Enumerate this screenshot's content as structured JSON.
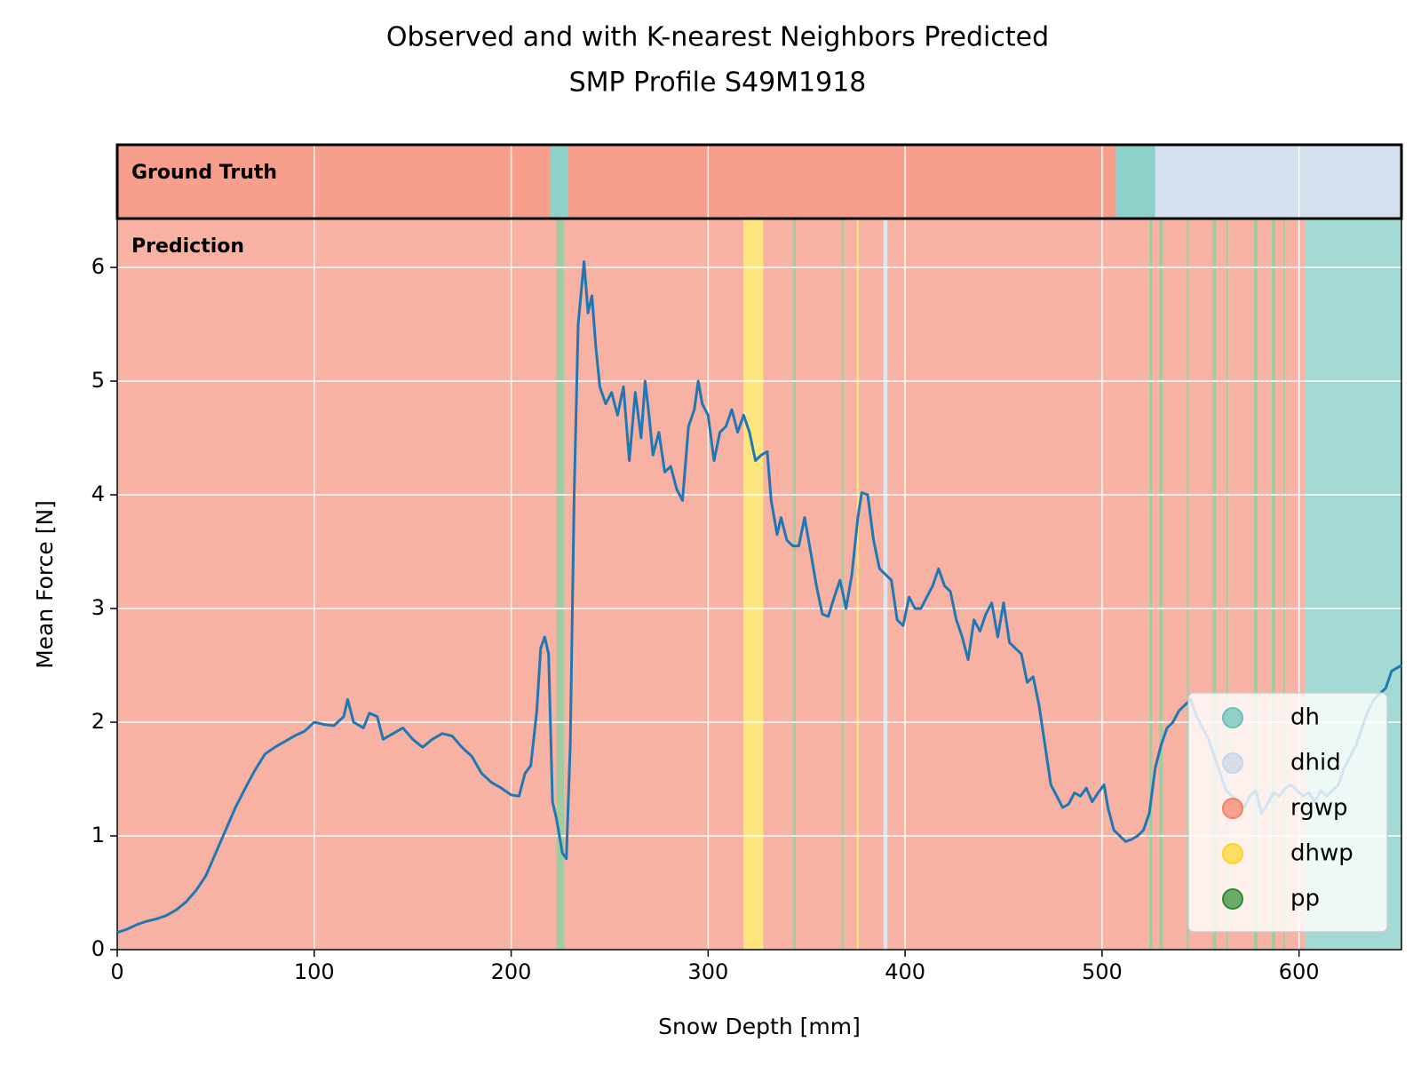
{
  "chart_data": {
    "type": "line",
    "title": [
      "Observed and with K-nearest Neighbors Predicted",
      "SMP Profile S49M1918"
    ],
    "xlabel": "Snow Depth [mm]",
    "ylabel": "Mean Force [N]",
    "panel_labels": {
      "ground_truth": "Ground Truth",
      "prediction": "Prediction"
    },
    "xlim": [
      0,
      652
    ],
    "ylim": [
      0,
      6.43
    ],
    "xticks": [
      0,
      100,
      200,
      300,
      400,
      500,
      600
    ],
    "yticks": [
      0,
      1,
      2,
      3,
      4,
      5,
      6
    ],
    "grid": true,
    "legend_loc": "lower right",
    "classes": [
      {
        "name": "dh",
        "color": "#66c2b8"
      },
      {
        "name": "dhid",
        "color": "#c6d5e8"
      },
      {
        "name": "rgwp",
        "color": "#f47f66"
      },
      {
        "name": "dhwp",
        "color": "#ffd32a"
      },
      {
        "name": "pp",
        "color": "#2e8b2e"
      }
    ],
    "ground_truth": [
      {
        "start": 0,
        "end": 220,
        "grain": "rgwp"
      },
      {
        "start": 220,
        "end": 229,
        "grain": "dh"
      },
      {
        "start": 229,
        "end": 507,
        "grain": "rgwp"
      },
      {
        "start": 507,
        "end": 527,
        "grain": "dh"
      },
      {
        "start": 527,
        "end": 652,
        "grain": "dhid"
      }
    ],
    "prediction": [
      {
        "start": 0,
        "end": 223,
        "grain": "rgwp"
      },
      {
        "start": 223,
        "end": 227,
        "grain": "pp"
      },
      {
        "start": 227,
        "end": 318,
        "grain": "rgwp"
      },
      {
        "start": 318,
        "end": 328,
        "grain": "dhwp"
      },
      {
        "start": 328,
        "end": 343,
        "grain": "rgwp"
      },
      {
        "start": 343,
        "end": 344.5,
        "grain": "pp"
      },
      {
        "start": 344.5,
        "end": 368,
        "grain": "rgwp"
      },
      {
        "start": 368,
        "end": 369,
        "grain": "pp"
      },
      {
        "start": 369,
        "end": 375.5,
        "grain": "rgwp"
      },
      {
        "start": 375.5,
        "end": 376.5,
        "grain": "dhwp"
      },
      {
        "start": 376.5,
        "end": 389,
        "grain": "rgwp"
      },
      {
        "start": 389,
        "end": 391,
        "grain": "dhid"
      },
      {
        "start": 391,
        "end": 524,
        "grain": "rgwp"
      },
      {
        "start": 524,
        "end": 525.5,
        "grain": "pp"
      },
      {
        "start": 525.5,
        "end": 529,
        "grain": "rgwp"
      },
      {
        "start": 529,
        "end": 531,
        "grain": "pp"
      },
      {
        "start": 531,
        "end": 543,
        "grain": "rgwp"
      },
      {
        "start": 543,
        "end": 544,
        "grain": "pp"
      },
      {
        "start": 544,
        "end": 556,
        "grain": "rgwp"
      },
      {
        "start": 556,
        "end": 558,
        "grain": "pp"
      },
      {
        "start": 558,
        "end": 563,
        "grain": "rgwp"
      },
      {
        "start": 563,
        "end": 564,
        "grain": "pp"
      },
      {
        "start": 564,
        "end": 577,
        "grain": "rgwp"
      },
      {
        "start": 577,
        "end": 579,
        "grain": "pp"
      },
      {
        "start": 579,
        "end": 586,
        "grain": "rgwp"
      },
      {
        "start": 586,
        "end": 588,
        "grain": "pp"
      },
      {
        "start": 588,
        "end": 592,
        "grain": "rgwp"
      },
      {
        "start": 592,
        "end": 593,
        "grain": "pp"
      },
      {
        "start": 593,
        "end": 603,
        "grain": "rgwp"
      },
      {
        "start": 603,
        "end": 652,
        "grain": "dh"
      }
    ],
    "x": [
      0,
      5,
      10,
      15,
      20,
      25,
      30,
      35,
      40,
      45,
      50,
      55,
      60,
      65,
      70,
      75,
      80,
      85,
      90,
      95,
      100,
      105,
      110,
      115,
      117,
      120,
      125,
      128,
      132,
      135,
      140,
      145,
      150,
      155,
      160,
      165,
      170,
      175,
      180,
      185,
      190,
      195,
      200,
      204,
      207,
      210,
      213,
      215,
      217,
      219,
      221,
      223,
      226,
      228,
      230,
      232,
      234,
      237,
      239,
      241,
      243,
      245,
      248,
      251,
      254,
      257,
      260,
      263,
      266,
      268,
      270,
      272,
      275,
      278,
      281,
      284,
      287,
      290,
      293,
      295,
      297,
      300,
      303,
      306,
      309,
      312,
      315,
      318,
      321,
      324,
      327,
      330,
      332,
      335,
      337,
      340,
      343,
      346,
      349,
      352,
      355,
      358,
      361,
      364,
      367,
      370,
      373,
      376,
      378,
      381,
      384,
      387,
      390,
      393,
      396,
      399,
      402,
      405,
      408,
      411,
      414,
      417,
      420,
      423,
      426,
      429,
      432,
      435,
      438,
      441,
      444,
      447,
      450,
      453,
      456,
      459,
      462,
      465,
      468,
      471,
      474,
      477,
      480,
      483,
      486,
      489,
      492,
      495,
      498,
      501,
      503,
      506,
      509,
      512,
      515,
      518,
      521,
      524,
      527,
      530,
      533,
      536,
      539,
      542,
      545,
      548,
      551,
      554,
      557,
      560,
      563,
      566,
      569,
      572,
      575,
      578,
      581,
      584,
      587,
      590,
      593,
      596,
      599,
      602,
      605,
      608,
      611,
      614,
      617,
      620,
      623,
      626,
      629,
      632,
      635,
      638,
      641,
      644,
      647,
      650,
      652
    ],
    "series": [
      {
        "color": "#1f77b4",
        "values": [
          0.15,
          0.18,
          0.22,
          0.25,
          0.27,
          0.3,
          0.35,
          0.42,
          0.52,
          0.65,
          0.85,
          1.05,
          1.25,
          1.42,
          1.58,
          1.72,
          1.78,
          1.83,
          1.88,
          1.92,
          2.0,
          1.98,
          1.97,
          2.05,
          2.2,
          2.0,
          1.95,
          2.08,
          2.05,
          1.85,
          1.9,
          1.95,
          1.85,
          1.78,
          1.85,
          1.9,
          1.88,
          1.78,
          1.7,
          1.55,
          1.47,
          1.42,
          1.36,
          1.35,
          1.55,
          1.62,
          2.1,
          2.65,
          2.75,
          2.6,
          1.3,
          1.15,
          0.85,
          0.8,
          1.8,
          4.0,
          5.5,
          6.05,
          5.6,
          5.75,
          5.3,
          4.95,
          4.8,
          4.9,
          4.7,
          4.95,
          4.3,
          4.9,
          4.5,
          5.0,
          4.7,
          4.35,
          4.55,
          4.2,
          4.25,
          4.05,
          3.95,
          4.6,
          4.75,
          5.0,
          4.8,
          4.7,
          4.3,
          4.55,
          4.6,
          4.75,
          4.55,
          4.7,
          4.55,
          4.3,
          4.35,
          4.38,
          3.95,
          3.65,
          3.8,
          3.6,
          3.55,
          3.55,
          3.8,
          3.5,
          3.2,
          2.95,
          2.93,
          3.1,
          3.25,
          3.0,
          3.3,
          3.8,
          4.02,
          4.0,
          3.6,
          3.35,
          3.3,
          3.25,
          2.9,
          2.85,
          3.1,
          3.0,
          3.0,
          3.1,
          3.2,
          3.35,
          3.2,
          3.15,
          2.9,
          2.75,
          2.55,
          2.9,
          2.8,
          2.95,
          3.05,
          2.75,
          3.05,
          2.7,
          2.65,
          2.6,
          2.35,
          2.4,
          2.15,
          1.8,
          1.45,
          1.35,
          1.25,
          1.28,
          1.38,
          1.35,
          1.42,
          1.3,
          1.38,
          1.45,
          1.25,
          1.05,
          1.0,
          0.95,
          0.97,
          1.0,
          1.05,
          1.2,
          1.6,
          1.8,
          1.95,
          2.0,
          2.1,
          2.15,
          2.2,
          2.05,
          1.95,
          1.85,
          1.7,
          1.55,
          1.4,
          1.35,
          1.3,
          1.25,
          1.35,
          1.4,
          1.2,
          1.28,
          1.38,
          1.35,
          1.42,
          1.45,
          1.4,
          1.35,
          1.38,
          1.3,
          1.4,
          1.35,
          1.4,
          1.45,
          1.6,
          1.7,
          1.8,
          1.95,
          2.1,
          2.2,
          2.25,
          2.3,
          2.45,
          2.48,
          2.5
        ]
      }
    ]
  }
}
